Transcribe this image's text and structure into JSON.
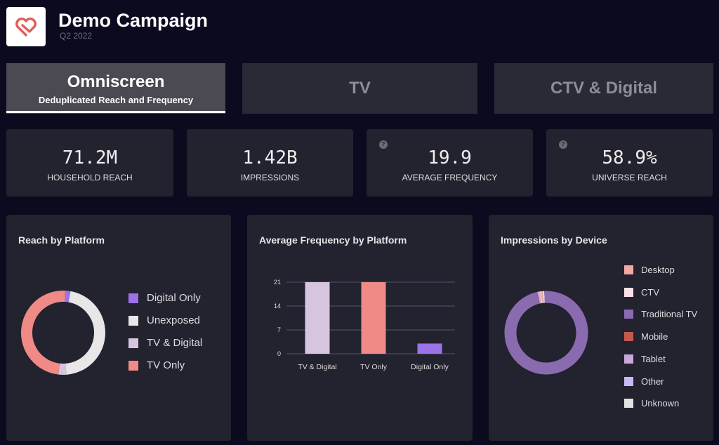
{
  "header": {
    "title": "Demo Campaign",
    "subtitle": "Q2 2022",
    "logo": "heart-check-logo",
    "accent": "#e0605a"
  },
  "tabs": [
    {
      "label": "Omniscreen",
      "sublabel": "Deduplicated Reach and Frequency",
      "active": true
    },
    {
      "label": "TV"
    },
    {
      "label": "CTV & Digital"
    }
  ],
  "kpis": [
    {
      "value": "71.2M",
      "label": "HOUSEHOLD REACH"
    },
    {
      "value": "1.42B",
      "label": "IMPRESSIONS"
    },
    {
      "value": "19.9",
      "label": "AVERAGE FREQUENCY",
      "help": "?"
    },
    {
      "value": "58.9%",
      "label": "UNIVERSE REACH",
      "help": "?"
    }
  ],
  "chart_data": [
    {
      "type": "pie",
      "title": "Reach by Platform",
      "donut": true,
      "legend": "right",
      "labels": [
        "Digital Only",
        "Unexposed",
        "TV & Digital",
        "TV Only"
      ],
      "values": [
        2,
        46,
        3,
        49
      ],
      "colors": [
        "#9b72e8",
        "#e8e6e6",
        "#d7c5e0",
        "#ef8a86"
      ]
    },
    {
      "type": "bar",
      "title": "Average Frequency by Platform",
      "categories": [
        "TV & Digital",
        "TV Only",
        "Digital Only"
      ],
      "values": [
        21,
        21,
        3
      ],
      "colors": [
        "#d7c5e0",
        "#ef8a86",
        "#9b72e8"
      ],
      "yticks": [
        "0",
        "7",
        "14",
        "21"
      ],
      "ylim": [
        0,
        21
      ],
      "grid": true
    },
    {
      "type": "pie",
      "title": "Impressions by Device",
      "donut": true,
      "legend": "right",
      "labels": [
        "Desktop",
        "CTV",
        "Traditional TV",
        "Mobile",
        "Tablet",
        "Other",
        "Unknown"
      ],
      "values": [
        0.8,
        0.5,
        97,
        0.3,
        0.4,
        0.6,
        0.4
      ],
      "colors": [
        "#f2aaa0",
        "#fbe1e6",
        "#8a6bb0",
        "#c25a4d",
        "#c9a8dc",
        "#c8b8f5",
        "#e3e3e3"
      ]
    }
  ]
}
